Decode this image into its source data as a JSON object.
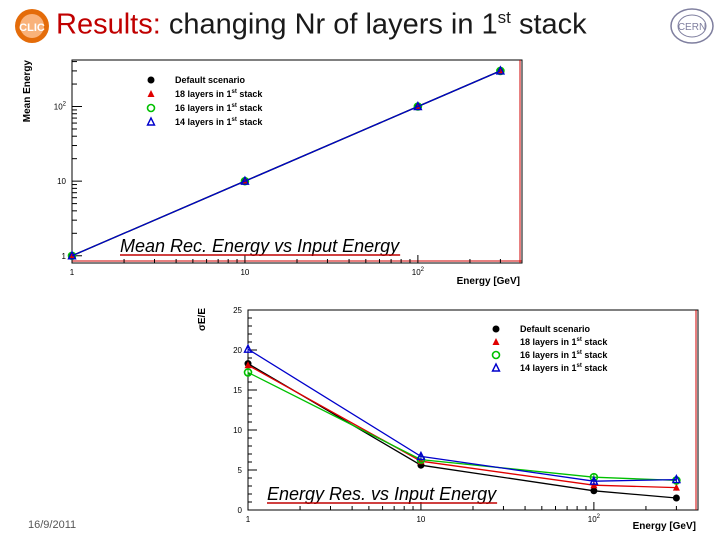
{
  "slide": {
    "title_accent": "Results:",
    "title_main": " changing Nr of layers in 1",
    "title_sup": "st",
    "title_end": " stack",
    "date": "16/9/2011",
    "logo_left": "CLIC",
    "logo_right": "CERN"
  },
  "chart_data": [
    {
      "type": "line",
      "xscale": "log",
      "yscale": "log",
      "x": [
        1,
        10,
        100,
        300
      ],
      "xlim": [
        1,
        400
      ],
      "ylim": [
        0.8,
        420
      ],
      "xlabel": "Energy [GeV]",
      "ylabel": "Mean Energy",
      "xticks": [
        {
          "v": 1,
          "label": "1"
        },
        {
          "v": 10,
          "label": "10"
        },
        {
          "v": 100,
          "label": "10",
          "sup": "2"
        }
      ],
      "yticks": [
        {
          "v": 1,
          "label": "1"
        },
        {
          "v": 10,
          "label": "10"
        },
        {
          "v": 100,
          "label": "10",
          "sup": "2"
        }
      ],
      "caption": "Mean Rec. Energy vs Input  Energy",
      "series": [
        {
          "name": "Default scenario",
          "sup": "",
          "color": "#000000",
          "marker": "circle",
          "values": [
            1,
            10,
            100,
            300
          ]
        },
        {
          "name": "18 layers in 1",
          "sup": "st",
          "suffix": " stack",
          "color": "#e00000",
          "marker": "triangle",
          "values": [
            1,
            10,
            100,
            300
          ]
        },
        {
          "name": "16 layers in 1",
          "sup": "st",
          "suffix": " stack",
          "color": "#00c000",
          "marker": "circle-open",
          "values": [
            1,
            10,
            100,
            300
          ]
        },
        {
          "name": "14 layers in 1",
          "sup": "st",
          "suffix": " stack",
          "color": "#0000cc",
          "marker": "triangle-open",
          "values": [
            1,
            10,
            100,
            300
          ]
        }
      ]
    },
    {
      "type": "line",
      "xscale": "log",
      "yscale": "linear",
      "x": [
        1,
        10,
        100,
        300
      ],
      "xlim": [
        1,
        400
      ],
      "ylim": [
        0,
        25
      ],
      "xlabel": "Energy [GeV]",
      "ylabel": "σE/E",
      "xticks": [
        {
          "v": 1,
          "label": "1"
        },
        {
          "v": 10,
          "label": "10"
        },
        {
          "v": 100,
          "label": "10",
          "sup": "2"
        }
      ],
      "yticks": [
        {
          "v": 0,
          "label": "0"
        },
        {
          "v": 5,
          "label": "5"
        },
        {
          "v": 10,
          "label": "10"
        },
        {
          "v": 15,
          "label": "15"
        },
        {
          "v": 20,
          "label": "20"
        },
        {
          "v": 25,
          "label": "25"
        }
      ],
      "caption": "Energy Res. vs Input  Energy",
      "series": [
        {
          "name": "Default scenario",
          "sup": "",
          "color": "#000000",
          "marker": "circle",
          "values": [
            18.3,
            5.6,
            2.4,
            1.5
          ]
        },
        {
          "name": "18 layers in 1",
          "sup": "st",
          "suffix": " stack",
          "color": "#e00000",
          "marker": "triangle",
          "values": [
            18.1,
            6.1,
            3.1,
            2.8
          ]
        },
        {
          "name": "16 layers in 1",
          "sup": "st",
          "suffix": " stack",
          "color": "#00c000",
          "marker": "circle-open",
          "values": [
            17.2,
            6.3,
            4.1,
            3.7
          ]
        },
        {
          "name": "14 layers in 1",
          "sup": "st",
          "suffix": " stack",
          "color": "#0000cc",
          "marker": "triangle-open",
          "values": [
            20.1,
            6.7,
            3.6,
            3.8
          ]
        }
      ]
    }
  ]
}
